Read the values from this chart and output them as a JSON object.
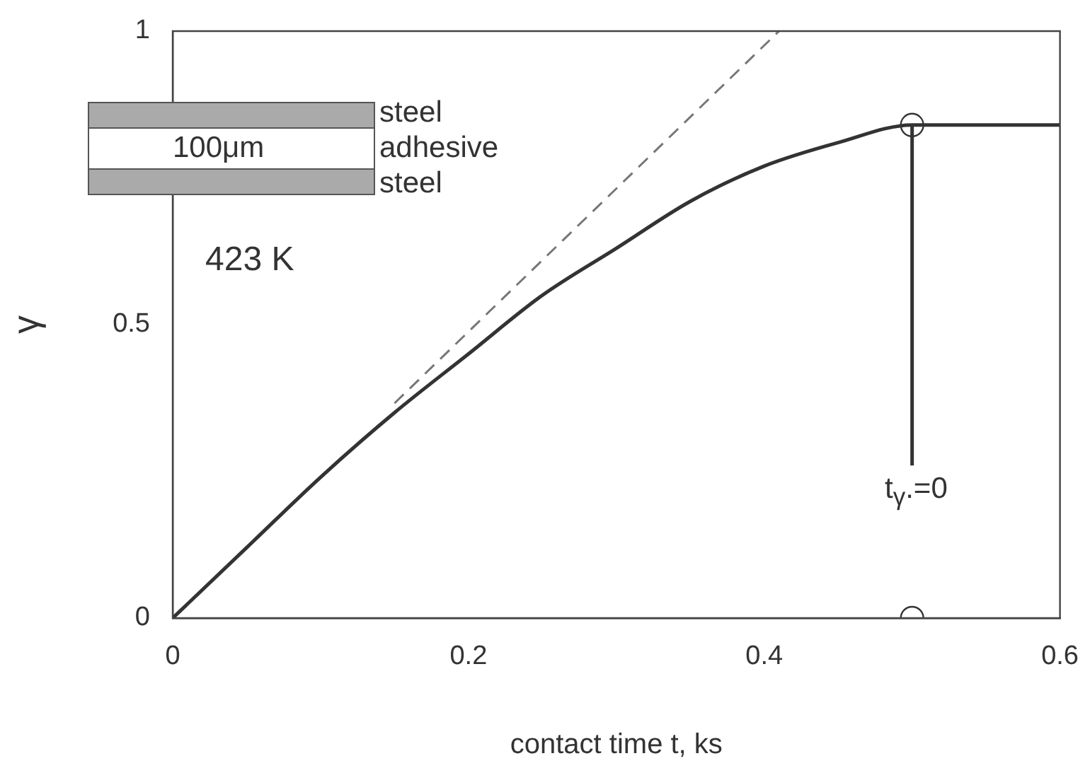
{
  "chart_data": {
    "type": "line",
    "xlabel": "contact time t, ks",
    "ylabel": "γ",
    "xlim": [
      0,
      0.6
    ],
    "xticks": [
      0,
      0.2,
      0.4,
      0.6
    ],
    "ylim": [
      0,
      1
    ],
    "yticks": [
      0,
      0.5,
      1
    ],
    "grid": false,
    "legend": false,
    "series": [
      {
        "color": "#333333",
        "line_style": "solid",
        "marker": "none",
        "x": [
          0,
          0.05,
          0.1,
          0.15,
          0.2,
          0.25,
          0.3,
          0.35,
          0.4,
          0.45,
          0.5,
          0.6
        ],
        "values": [
          0,
          0.12,
          0.24,
          0.35,
          0.45,
          0.55,
          0.63,
          0.71,
          0.77,
          0.81,
          0.84,
          0.84
        ]
      },
      {
        "type": "line",
        "color": "#777777",
        "line_style": "dashed",
        "marker": "none",
        "x": [
          0.15,
          0.41
        ],
        "values": [
          0.366,
          1
        ]
      },
      {
        "type": "line",
        "color": "#333333",
        "line_style": "solid",
        "marker": "none",
        "x": [
          0.5,
          0.5
        ],
        "values": [
          0.84,
          0.26
        ]
      },
      {
        "type": "scatter",
        "color": "#333333",
        "marker": "circle",
        "x": [
          0.5,
          0.5
        ],
        "values": [
          0.84,
          0
        ]
      }
    ],
    "annotations": [
      "steel",
      "adhesive",
      "steel",
      "100μm",
      "423 K",
      "t$_{γ}$.=0"
    ]
  }
}
